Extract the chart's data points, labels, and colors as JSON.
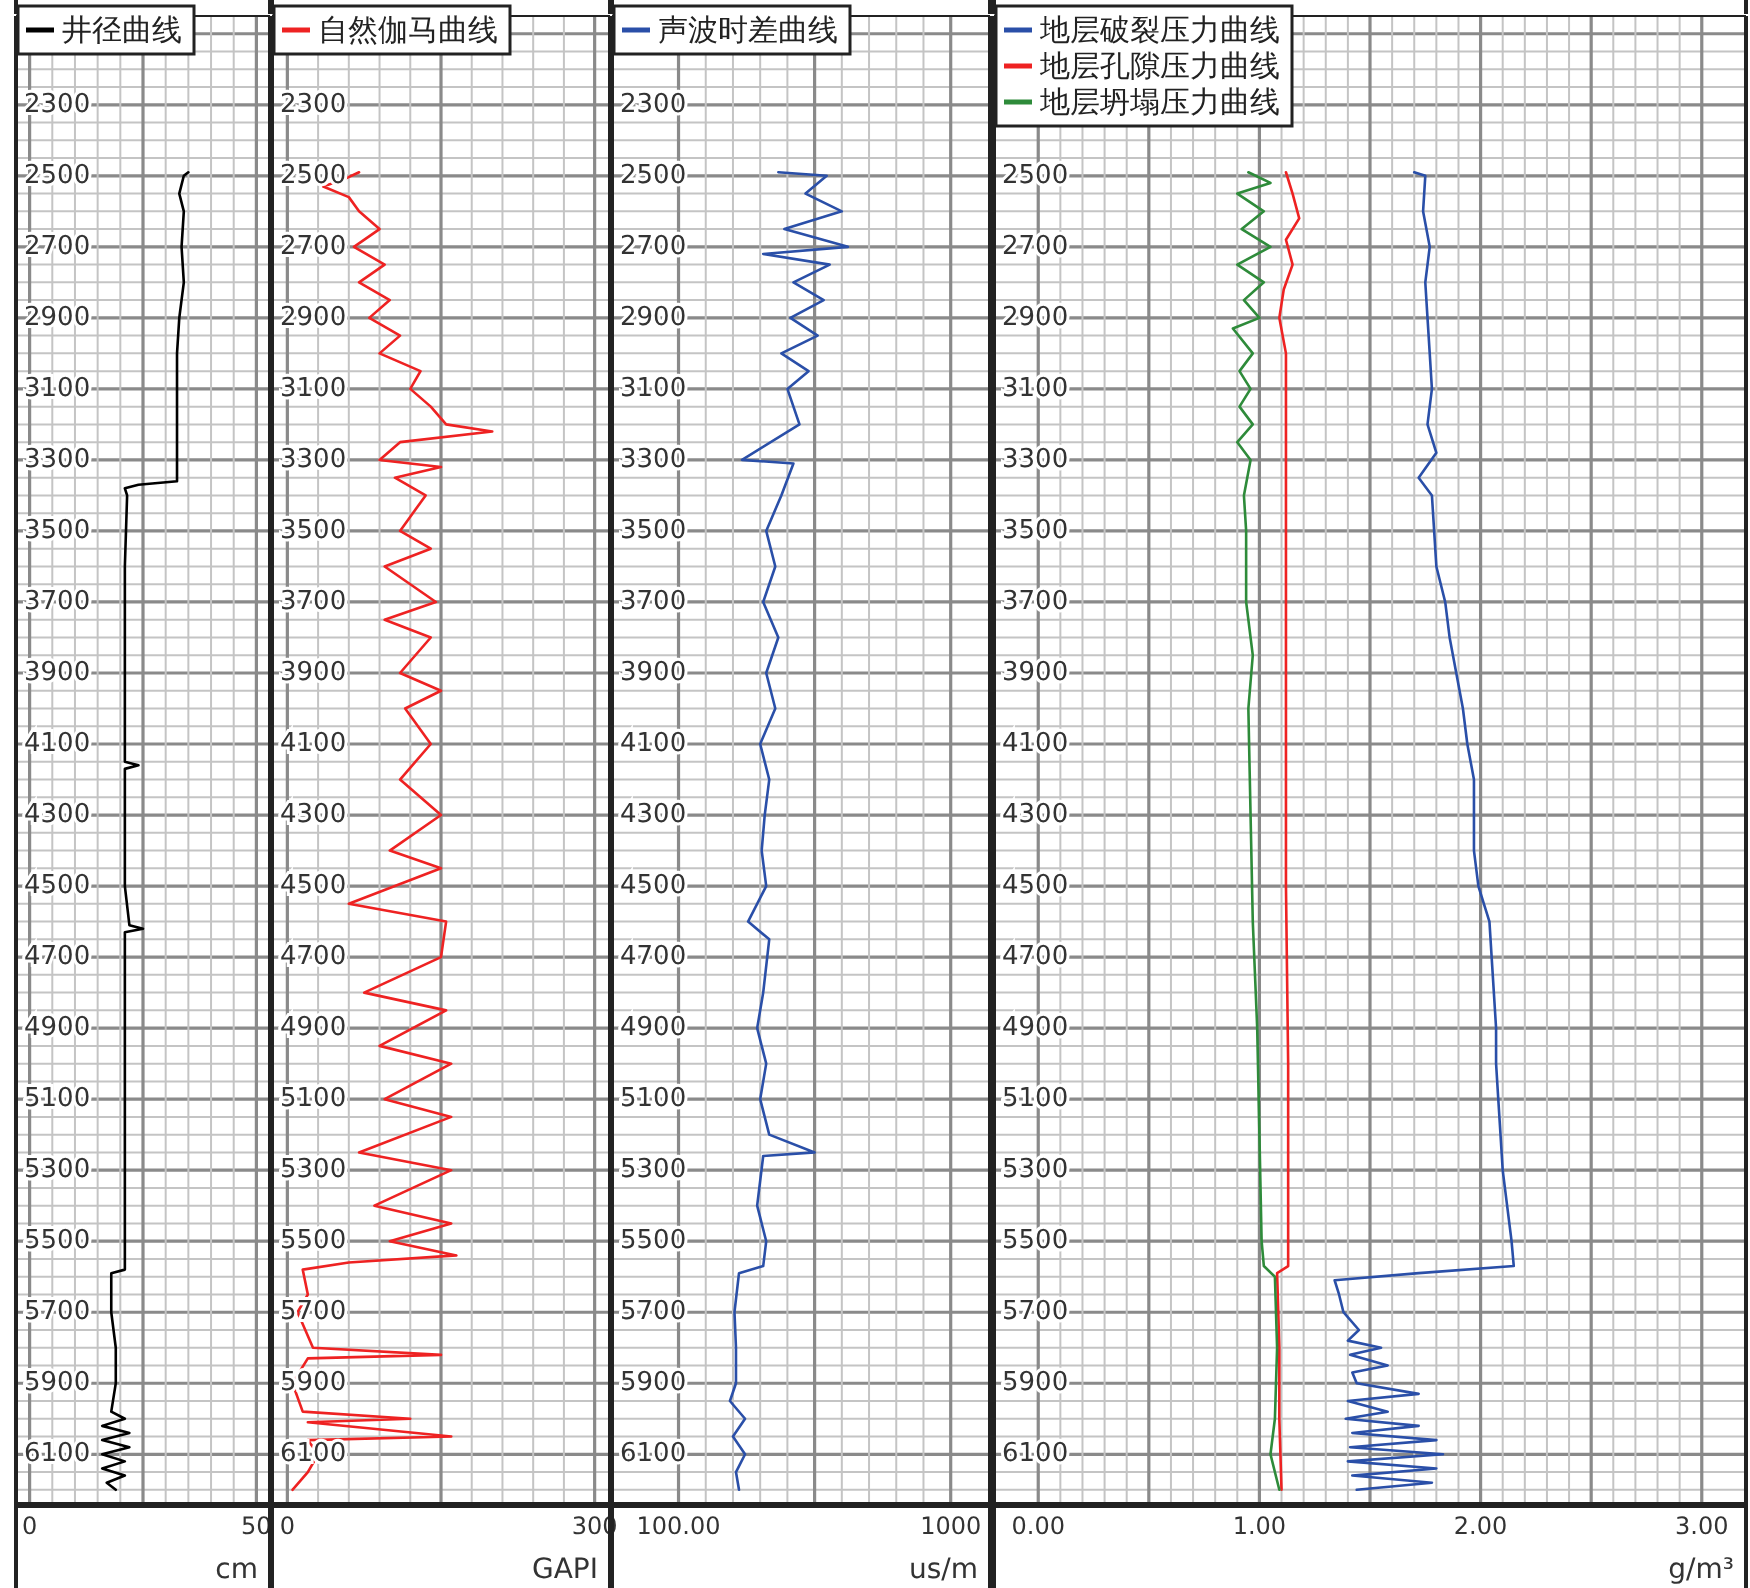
{
  "chart_data": [
    {
      "type": "line",
      "xlabel": "cm",
      "xlim": [
        -3,
        53
      ],
      "xticks": [
        0,
        50
      ],
      "ylim": [
        6240,
        2050
      ],
      "yticks": [
        2300,
        2500,
        2700,
        2900,
        3100,
        3300,
        3500,
        3700,
        3900,
        4100,
        4300,
        4500,
        4700,
        4900,
        5100,
        5300,
        5500,
        5700,
        5900,
        6100
      ],
      "grid": true,
      "legend": "top left",
      "series": [
        {
          "name": "井径曲线",
          "color": "#000000",
          "x": [
            35,
            34,
            33,
            34,
            33.5,
            34,
            33,
            32.5,
            32.5,
            32.5,
            32.5,
            24,
            21,
            21.5,
            21,
            21,
            21,
            21,
            24,
            21,
            21,
            22,
            25,
            21,
            21,
            21,
            21,
            18,
            18,
            19,
            19,
            18,
            21,
            16,
            22,
            16,
            22,
            16,
            21,
            16,
            21,
            17,
            19
          ],
          "values": [
            2490,
            2500,
            2550,
            2600,
            2700,
            2800,
            2900,
            3000,
            3100,
            3200,
            3360,
            3370,
            3380,
            3400,
            3600,
            3800,
            4000,
            4150,
            4160,
            4170,
            4500,
            4610,
            4620,
            4630,
            5000,
            5300,
            5580,
            5590,
            5700,
            5800,
            5900,
            5980,
            6000,
            6020,
            6040,
            6060,
            6080,
            6100,
            6120,
            6140,
            6160,
            6180,
            6200
          ]
        }
      ]
    },
    {
      "type": "line",
      "xlabel": "GAPI",
      "xlim": [
        -15,
        315
      ],
      "xticks": [
        0,
        300
      ],
      "ylim": [
        6240,
        2050
      ],
      "yticks": [
        2300,
        2500,
        2700,
        2900,
        3100,
        3300,
        3500,
        3700,
        3900,
        4100,
        4300,
        4500,
        4700,
        4900,
        5100,
        5300,
        5500,
        5700,
        5900,
        6100
      ],
      "grid": true,
      "legend": "top left",
      "series": [
        {
          "name": "自然伽马曲线",
          "color": "#ee2222",
          "x": [
            70,
            55,
            35,
            60,
            70,
            90,
            65,
            95,
            70,
            100,
            80,
            110,
            90,
            130,
            120,
            140,
            155,
            200,
            110,
            90,
            150,
            105,
            135,
            110,
            140,
            95,
            145,
            95,
            140,
            110,
            150,
            115,
            140,
            110,
            150,
            100,
            150,
            60,
            155,
            150,
            75,
            155,
            90,
            160,
            95,
            160,
            70,
            160,
            85,
            160,
            100,
            165,
            60,
            15,
            20,
            10,
            25,
            150,
            20,
            5,
            15,
            120,
            20,
            160,
            20,
            30,
            20,
            5
          ],
          "values": [
            2490,
            2510,
            2530,
            2560,
            2600,
            2650,
            2700,
            2750,
            2800,
            2850,
            2900,
            2950,
            3000,
            3050,
            3100,
            3150,
            3200,
            3220,
            3250,
            3300,
            3320,
            3350,
            3400,
            3500,
            3550,
            3600,
            3700,
            3750,
            3800,
            3900,
            3950,
            4000,
            4100,
            4200,
            4300,
            4400,
            4450,
            4550,
            4600,
            4700,
            4800,
            4850,
            4950,
            5000,
            5100,
            5150,
            5250,
            5300,
            5400,
            5450,
            5500,
            5540,
            5560,
            5580,
            5650,
            5700,
            5800,
            5820,
            5830,
            5900,
            5980,
            6000,
            6010,
            6050,
            6060,
            6100,
            6150,
            6200
          ]
        }
      ]
    },
    {
      "type": "line",
      "xlabel": "us/m",
      "xlim": [
        -120,
        1130
      ],
      "xticks": [
        {
          "value": 100,
          "label": "100.00"
        },
        1000
      ],
      "ylim": [
        6240,
        2050
      ],
      "yticks": [
        2300,
        2500,
        2700,
        2900,
        3100,
        3300,
        3500,
        3700,
        3900,
        4100,
        4300,
        4500,
        4700,
        4900,
        5100,
        5300,
        5500,
        5700,
        5900,
        6100
      ],
      "grid": true,
      "legend": "top left",
      "series": [
        {
          "name": "声波时差曲线",
          "color": "#2a4fa8",
          "x": [
            430,
            590,
            520,
            640,
            450,
            660,
            380,
            600,
            480,
            580,
            470,
            560,
            440,
            530,
            460,
            500,
            310,
            480,
            440,
            390,
            420,
            380,
            430,
            390,
            420,
            370,
            400,
            385,
            375,
            390,
            330,
            400,
            380,
            360,
            390,
            370,
            400,
            550,
            380,
            360,
            390,
            380,
            300,
            285,
            290,
            290,
            270,
            320,
            280,
            320,
            290,
            300
          ],
          "values": [
            2490,
            2500,
            2550,
            2600,
            2650,
            2700,
            2720,
            2750,
            2800,
            2850,
            2900,
            2950,
            3000,
            3050,
            3100,
            3200,
            3300,
            3310,
            3400,
            3500,
            3600,
            3700,
            3800,
            3900,
            4000,
            4100,
            4200,
            4300,
            4400,
            4500,
            4600,
            4650,
            4800,
            4900,
            5000,
            5100,
            5200,
            5250,
            5260,
            5400,
            5500,
            5570,
            5590,
            5700,
            5800,
            5900,
            5950,
            6000,
            6050,
            6100,
            6150,
            6200
          ]
        }
      ]
    },
    {
      "type": "line",
      "xlabel": "g/m³",
      "xlim": [
        -0.2,
        3.2
      ],
      "xticks": [
        {
          "value": 0,
          "label": "0.00"
        },
        {
          "value": 1,
          "label": "1.00"
        },
        {
          "value": 2,
          "label": "2.00"
        },
        {
          "value": 3,
          "label": "3.00"
        }
      ],
      "ylim": [
        6240,
        2050
      ],
      "yticks": [
        2500,
        2700,
        2900,
        3100,
        3300,
        3500,
        3700,
        3900,
        4100,
        4300,
        4500,
        4700,
        4900,
        5100,
        5300,
        5500,
        5700,
        5900,
        6100
      ],
      "grid": true,
      "legend": "top left",
      "series": [
        {
          "name": "地层破裂压力曲线",
          "color": "#2a4fa8",
          "x": [
            1.7,
            1.75,
            1.74,
            1.77,
            1.75,
            1.76,
            1.77,
            1.78,
            1.76,
            1.8,
            1.72,
            1.78,
            1.79,
            1.8,
            1.84,
            1.86,
            1.89,
            1.92,
            1.94,
            1.97,
            1.97,
            1.97,
            1.99,
            2.04,
            2.05,
            2.06,
            2.07,
            2.07,
            2.08,
            2.09,
            2.1,
            2.12,
            2.14,
            2.15,
            1.72,
            1.34,
            1.36,
            1.38,
            1.45,
            1.4,
            1.55,
            1.41,
            1.58,
            1.42,
            1.44,
            1.72,
            1.4,
            1.58,
            1.39,
            1.72,
            1.42,
            1.8,
            1.41,
            1.83,
            1.4,
            1.8,
            1.42,
            1.78,
            1.44
          ],
          "values": [
            2490,
            2500,
            2600,
            2700,
            2800,
            2900,
            3000,
            3100,
            3200,
            3280,
            3350,
            3400,
            3500,
            3600,
            3700,
            3800,
            3900,
            4000,
            4100,
            4200,
            4300,
            4400,
            4500,
            4600,
            4700,
            4800,
            4900,
            5000,
            5100,
            5200,
            5300,
            5400,
            5500,
            5570,
            5590,
            5610,
            5650,
            5700,
            5750,
            5780,
            5800,
            5820,
            5850,
            5870,
            5900,
            5930,
            5950,
            5980,
            6000,
            6020,
            6040,
            6060,
            6080,
            6100,
            6120,
            6140,
            6160,
            6180,
            6200
          ]
        },
        {
          "name": "地层孔隙压力曲线",
          "color": "#ee2222",
          "x": [
            1.12,
            1.15,
            1.18,
            1.12,
            1.15,
            1.11,
            1.09,
            1.12,
            1.12,
            1.12,
            1.12,
            1.12,
            1.13,
            1.13,
            1.08,
            1.09,
            1.09,
            1.1
          ],
          "values": [
            2490,
            2550,
            2620,
            2680,
            2750,
            2820,
            2900,
            3000,
            3200,
            3500,
            4000,
            4500,
            5000,
            5570,
            5590,
            5800,
            6000,
            6200
          ]
        },
        {
          "name": "地层坍塌压力曲线",
          "color": "#2e8b3a",
          "x": [
            0.95,
            1.05,
            0.9,
            1.02,
            0.92,
            1.05,
            0.9,
            1.02,
            0.93,
            1.0,
            0.88,
            0.97,
            0.91,
            0.96,
            0.91,
            0.97,
            0.9,
            0.96,
            0.93,
            0.94,
            0.94,
            0.97,
            0.95,
            0.96,
            0.97,
            0.99,
            1.0,
            1.01,
            1.02,
            1.07,
            1.08,
            1.07,
            1.05,
            1.09
          ],
          "values": [
            2490,
            2520,
            2550,
            2600,
            2650,
            2700,
            2750,
            2800,
            2850,
            2900,
            2930,
            3000,
            3050,
            3100,
            3150,
            3200,
            3250,
            3300,
            3400,
            3500,
            3700,
            3850,
            4000,
            4300,
            4600,
            4900,
            5200,
            5500,
            5570,
            5600,
            5800,
            6000,
            6100,
            6200
          ]
        }
      ]
    }
  ]
}
